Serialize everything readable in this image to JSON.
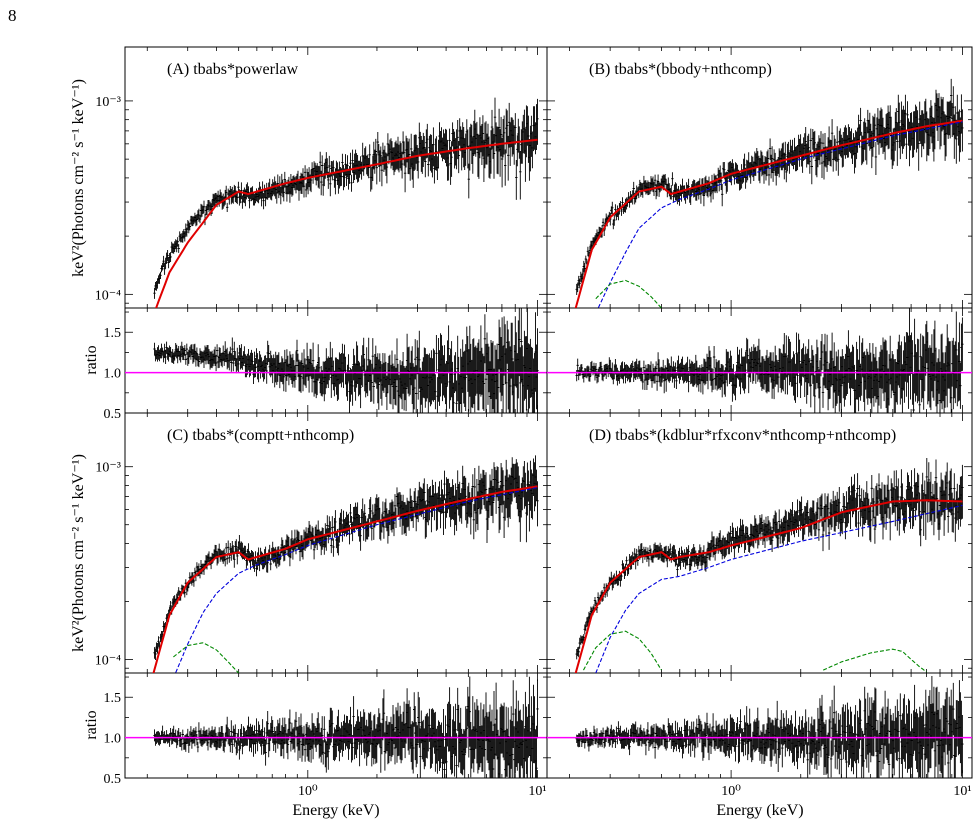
{
  "page_number": "8",
  "axis_labels": {
    "spectrum_ylabel": "keV²(Photons cm⁻² s⁻¹ keV⁻¹)",
    "ratio_ylabel": "ratio",
    "xlabel": "Energy (keV)"
  },
  "colors": {
    "data": "#000000",
    "total_model": "#e00000",
    "component_comptonization": "#0000dd",
    "component_soft": "#008800",
    "unity_line": "#ff00ff"
  },
  "chart_data": [
    {
      "type": "line",
      "panel": "A",
      "title": "(A) tbabs*powerlaw",
      "xlabel": "",
      "ylabel": "keV²(Photons cm⁻² s⁻¹ keV⁻¹)",
      "xscale": "log",
      "yscale": "log",
      "xlim": [
        0.16,
        11
      ],
      "ylim": [
        8.5e-05,
        0.0019
      ],
      "x_ticks": [
        "10⁰",
        "10¹"
      ],
      "y_ticks": [
        "10⁻⁴",
        "10⁻³"
      ],
      "series": [
        {
          "role": "data",
          "x": [
            0.21,
            0.25,
            0.3,
            0.4,
            0.5,
            0.6,
            0.8,
            1.0,
            1.5,
            2.0,
            3.0,
            4.0,
            5.0,
            6.0,
            8.0,
            10.0
          ],
          "y": [
            0.000102,
            0.00016,
            0.00022,
            0.00031,
            0.00033,
            0.00032,
            0.00036,
            0.0004,
            0.00045,
            0.0005,
            0.00055,
            0.00058,
            0.0006,
            0.00062,
            0.00063,
            0.00066
          ]
        },
        {
          "role": "model",
          "x": [
            0.21,
            0.25,
            0.3,
            0.4,
            0.5,
            0.55,
            0.6,
            0.8,
            1.0,
            2.0,
            3.0,
            5.0,
            7.0,
            10.0
          ],
          "y": [
            7.5e-05,
            0.00013,
            0.000185,
            0.00029,
            0.00034,
            0.00033,
            0.00034,
            0.000375,
            0.0004,
            0.00047,
            0.00052,
            0.00057,
            0.0006,
            0.00063
          ]
        }
      ],
      "ratio": {
        "ylim": [
          0.5,
          1.8
        ],
        "y_ticks": [
          "0.5",
          "1.0",
          "1.5"
        ],
        "level": 1.0,
        "trend": [
          1.25,
          1.22,
          1.15,
          1.05,
          1.0,
          0.97,
          0.95,
          0.95,
          1.0,
          1.05
        ]
      }
    },
    {
      "type": "line",
      "panel": "B",
      "title": "(B) tbabs*(bbody+nthcomp)",
      "xlabel": "",
      "ylabel": "",
      "xscale": "log",
      "yscale": "log",
      "xlim": [
        0.16,
        11
      ],
      "ylim": [
        8.5e-05,
        0.0019
      ],
      "series": [
        {
          "role": "data",
          "x": [
            0.21,
            0.25,
            0.3,
            0.4,
            0.5,
            0.6,
            0.8,
            1.0,
            1.5,
            2.0,
            3.0,
            4.0,
            5.0,
            6.0,
            8.0,
            10.0
          ],
          "y": [
            9.5e-05,
            0.00018,
            0.00025,
            0.00035,
            0.00037,
            0.00033,
            0.00036,
            0.00042,
            0.00048,
            0.00054,
            0.0006,
            0.00065,
            0.0007,
            0.00072,
            0.00076,
            0.00079
          ]
        },
        {
          "role": "model",
          "x": [
            0.21,
            0.25,
            0.3,
            0.4,
            0.5,
            0.55,
            0.6,
            0.8,
            1.0,
            2.0,
            3.0,
            5.0,
            7.0,
            10.0
          ],
          "y": [
            8e-05,
            0.00017,
            0.00025,
            0.00034,
            0.00036,
            0.00033,
            0.00034,
            0.000375,
            0.00042,
            0.00052,
            0.00059,
            0.00068,
            0.00074,
            0.00079
          ]
        },
        {
          "role": "component-comptonization",
          "x": [
            0.26,
            0.3,
            0.35,
            0.4,
            0.5,
            0.6,
            0.8,
            1.0,
            2.0,
            5.0,
            10.0
          ],
          "y": [
            8e-05,
            0.000115,
            0.000165,
            0.00022,
            0.00028,
            0.00031,
            0.00035,
            0.00039,
            0.0005,
            0.00066,
            0.00078
          ]
        },
        {
          "role": "component-soft",
          "x": [
            0.26,
            0.3,
            0.35,
            0.4,
            0.45,
            0.5
          ],
          "y": [
            9.5e-05,
            0.000113,
            0.000118,
            0.00011,
            9.75e-05,
            8.5e-05
          ]
        }
      ],
      "ratio": {
        "ylim": [
          0.5,
          1.8
        ],
        "level": 1.0,
        "trend": [
          1.0,
          1.0,
          0.98,
          1.0,
          1.02,
          1.02,
          1.0,
          1.0,
          1.0,
          0.99
        ]
      }
    },
    {
      "type": "line",
      "panel": "C",
      "title": "(C) tbabs*(comptt+nthcomp)",
      "xlabel": "Energy (keV)",
      "ylabel": "keV²(Photons cm⁻² s⁻¹ keV⁻¹)",
      "xscale": "log",
      "yscale": "log",
      "xlim": [
        0.16,
        11
      ],
      "ylim": [
        8.5e-05,
        0.0019
      ],
      "x_ticks": [
        "10⁰",
        "10¹"
      ],
      "y_ticks": [
        "10⁻⁴",
        "10⁻³"
      ],
      "series": [
        {
          "role": "data",
          "x": [
            0.21,
            0.25,
            0.3,
            0.4,
            0.5,
            0.6,
            0.8,
            1.0,
            1.5,
            2.0,
            3.0,
            4.0,
            5.0,
            6.0,
            8.0,
            10.0
          ],
          "y": [
            9.5e-05,
            0.00018,
            0.00025,
            0.00035,
            0.00037,
            0.00033,
            0.00036,
            0.00042,
            0.00048,
            0.00054,
            0.0006,
            0.00065,
            0.0007,
            0.00072,
            0.00076,
            0.00079
          ]
        },
        {
          "role": "model",
          "x": [
            0.21,
            0.25,
            0.3,
            0.4,
            0.5,
            0.55,
            0.6,
            0.8,
            1.0,
            2.0,
            3.0,
            5.0,
            7.0,
            10.0
          ],
          "y": [
            8e-05,
            0.00017,
            0.00025,
            0.00034,
            0.00036,
            0.00033,
            0.00034,
            0.000375,
            0.00042,
            0.00052,
            0.00059,
            0.00068,
            0.00074,
            0.00079
          ]
        },
        {
          "role": "component-comptonization",
          "x": [
            0.26,
            0.3,
            0.35,
            0.4,
            0.5,
            0.6,
            0.8,
            1.0,
            2.0,
            5.0,
            10.0
          ],
          "y": [
            8e-05,
            0.00012,
            0.000175,
            0.00022,
            0.00028,
            0.00031,
            0.00035,
            0.00039,
            0.0005,
            0.00066,
            0.00078
          ]
        },
        {
          "role": "component-soft",
          "x": [
            0.26,
            0.3,
            0.35,
            0.4,
            0.45,
            0.5
          ],
          "y": [
            0.000103,
            0.000118,
            0.000122,
            0.000112,
            9.7e-05,
            8.5e-05
          ]
        }
      ],
      "ratio": {
        "ylim": [
          0.5,
          1.8
        ],
        "y_ticks": [
          "0.5",
          "1.0",
          "1.5"
        ],
        "level": 1.0,
        "trend": [
          1.0,
          1.0,
          1.0,
          1.0,
          1.0,
          1.01,
          1.0,
          1.0,
          1.0,
          1.0
        ]
      }
    },
    {
      "type": "line",
      "panel": "D",
      "title": "(D) tbabs*(kdblur*rfxconv*nthcomp+nthcomp)",
      "xlabel": "Energy (keV)",
      "ylabel": "",
      "xscale": "log",
      "yscale": "log",
      "xlim": [
        0.16,
        11
      ],
      "ylim": [
        8.5e-05,
        0.0019
      ],
      "x_ticks": [
        "10⁰",
        "10¹"
      ],
      "series": [
        {
          "role": "data",
          "x": [
            0.21,
            0.25,
            0.3,
            0.4,
            0.5,
            0.6,
            0.8,
            1.0,
            1.5,
            2.0,
            3.0,
            4.0,
            5.0,
            6.0,
            8.0,
            10.0
          ],
          "y": [
            9.5e-05,
            0.00018,
            0.00025,
            0.00035,
            0.00037,
            0.00033,
            0.00036,
            0.00041,
            0.00047,
            0.00053,
            0.0006,
            0.00065,
            0.00068,
            0.00068,
            0.00067,
            0.00066
          ]
        },
        {
          "role": "model",
          "x": [
            0.21,
            0.25,
            0.3,
            0.4,
            0.5,
            0.55,
            0.6,
            0.8,
            1.0,
            2.0,
            3.0,
            5.0,
            7.0,
            10.0
          ],
          "y": [
            8e-05,
            0.00017,
            0.00025,
            0.00034,
            0.00036,
            0.00033,
            0.00034,
            0.00036,
            0.00039,
            0.00048,
            0.00058,
            0.00066,
            0.00067,
            0.00066
          ]
        },
        {
          "role": "component-comptonization",
          "x": [
            0.26,
            0.3,
            0.35,
            0.4,
            0.5,
            0.6,
            0.8,
            1.0,
            2.0,
            5.0,
            10.0
          ],
          "y": [
            8.5e-05,
            0.00013,
            0.00018,
            0.00022,
            0.00026,
            0.00027,
            0.0003,
            0.00033,
            0.00041,
            0.00052,
            0.00063
          ]
        },
        {
          "role": "component-soft",
          "x": [
            0.23,
            0.26,
            0.3,
            0.35,
            0.4,
            0.45,
            0.5
          ],
          "y": [
            8.8e-05,
            0.000115,
            0.000135,
            0.00014,
            0.000128,
            0.000108,
            8.8e-05
          ]
        },
        {
          "role": "component-reflection",
          "x": [
            2.5,
            3.0,
            4.0,
            5.0,
            5.5,
            6.0,
            6.5,
            7.0
          ],
          "y": [
            8.8e-05,
            9.7e-05,
            0.000108,
            0.000113,
            0.00011,
            0.0001,
            9.2e-05,
            8.6e-05
          ]
        }
      ],
      "ratio": {
        "ylim": [
          0.5,
          1.8
        ],
        "level": 1.0,
        "trend": [
          1.0,
          1.0,
          1.0,
          1.0,
          1.0,
          1.0,
          1.0,
          1.0,
          1.0,
          1.0
        ]
      }
    }
  ]
}
